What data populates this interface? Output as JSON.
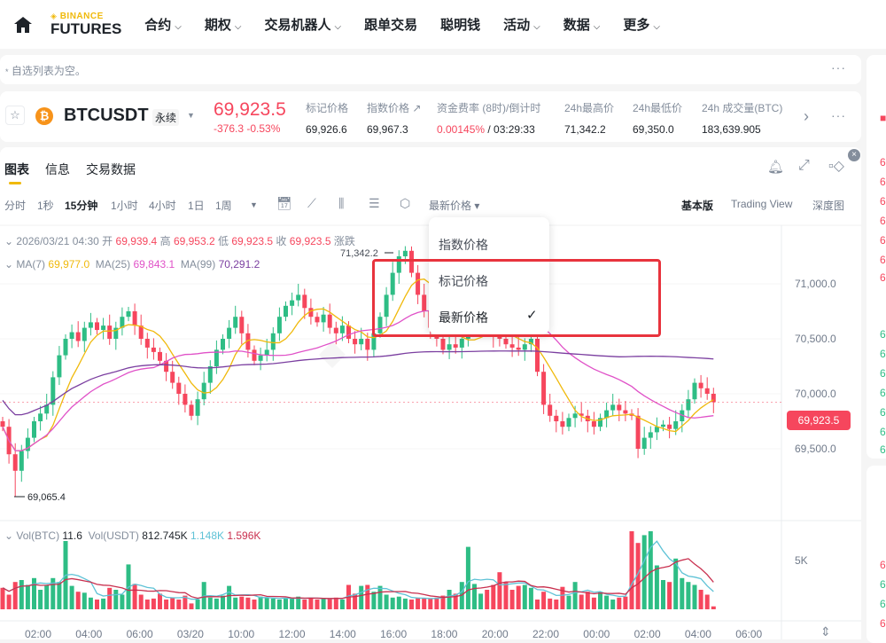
{
  "nav": {
    "brand_top": "BINANCE",
    "brand_bottom": "FUTURES",
    "items": [
      {
        "label": "合约",
        "dropdown": true
      },
      {
        "label": "期权",
        "dropdown": true
      },
      {
        "label": "交易机器人",
        "dropdown": true
      },
      {
        "label": "跟单交易",
        "dropdown": false
      },
      {
        "label": "聪明钱",
        "dropdown": false
      },
      {
        "label": "活动",
        "dropdown": true
      },
      {
        "label": "数据",
        "dropdown": true
      },
      {
        "label": "更多",
        "dropdown": true
      }
    ]
  },
  "watchlist": {
    "empty_text": "自选列表为空。"
  },
  "ticker": {
    "symbol": "BTCUSDT",
    "type": "永续",
    "last_price": "69,923.5",
    "change": "-376.3",
    "change_pct": "-0.53%",
    "stats": [
      {
        "label": "标记价格",
        "value": "69,926.6"
      },
      {
        "label": "指数价格 ↗",
        "value": "69,967.3"
      },
      {
        "label": "资金费率 (8时)/倒计时",
        "value": "0.00145%",
        "value2": " / 03:29:33"
      },
      {
        "label": "24h最高价",
        "value": "71,342.2"
      },
      {
        "label": "24h最低价",
        "value": "69,350.0"
      },
      {
        "label": "24h 成交量(BTC)",
        "value": "183,639.905"
      }
    ]
  },
  "tabs": [
    "图表",
    "信息",
    "交易数据"
  ],
  "intervals": [
    "分时",
    "1秒",
    "15分钟",
    "1小时",
    "4小时",
    "1日",
    "1周"
  ],
  "selected_interval": "15分钟",
  "price_type": "最新价格",
  "views": [
    "基本版",
    "Trading View",
    "深度图"
  ],
  "selected_view": "基本版",
  "ohlc": {
    "date": "2026/03/21 04:30",
    "open_label": "开",
    "open": "69,939.4",
    "high_label": "高",
    "high": "69,953.2",
    "low_label": "低",
    "low": "69,923.5",
    "close_label": "收",
    "close": "69,923.5",
    "change_label": "涨跌"
  },
  "ma": {
    "ma7_label": "MA(7)",
    "ma7": "69,977.0",
    "ma25_label": "MA(25)",
    "ma25": "69,843.1",
    "ma99_label": "MA(99)",
    "ma99": "70,291.2"
  },
  "vol": {
    "btc_label": "Vol(BTC)",
    "btc": "11.6",
    "usdt_label": "Vol(USDT)",
    "usdt": "812.745K",
    "ma1": "1.148K",
    "ma2": "1.596K",
    "axis_label": "5K"
  },
  "dropdown": {
    "items": [
      "指数价格",
      "标记价格",
      "最新价格"
    ],
    "selected": "最新价格"
  },
  "colors": {
    "up": "#2ebd85",
    "down": "#f6465d",
    "ma7": "#f0b90b",
    "ma25": "#e052c8",
    "ma99": "#7b3fa0",
    "vol_ma1": "#5ec2d6",
    "vol_ma2": "#c9304f",
    "accent": "#f0b90b"
  },
  "chart_data": {
    "type": "candlestick",
    "interval": "15m",
    "y_ticks": [
      "71,000.0",
      "70,500.0",
      "70,000.0",
      "69,500.0"
    ],
    "y_tick_values": [
      71000,
      70500,
      70000,
      69500
    ],
    "x_ticks": [
      "02:00",
      "04:00",
      "06:00",
      "03/20",
      "10:00",
      "12:00",
      "14:00",
      "16:00",
      "18:00",
      "20:00",
      "22:00",
      "00:00",
      "02:00",
      "04:00",
      "06:00"
    ],
    "high_marker": "71,342.2",
    "low_marker": "69,065.4",
    "last_price": 69923.5,
    "last_label": "69,923.5",
    "closes": [
      69700,
      69450,
      69300,
      69480,
      69600,
      69750,
      69820,
      69900,
      70150,
      70350,
      70500,
      70560,
      70480,
      70600,
      70650,
      70580,
      70620,
      70500,
      70600,
      70700,
      70750,
      70620,
      70500,
      70420,
      70380,
      70300,
      70200,
      70100,
      70000,
      69900,
      69800,
      69950,
      70100,
      70250,
      70400,
      70500,
      70600,
      70700,
      70550,
      70400,
      70300,
      70350,
      70400,
      70550,
      70700,
      70800,
      70850,
      70900,
      70780,
      70700,
      70650,
      70720,
      70600,
      70550,
      70620,
      70500,
      70450,
      70500,
      70400,
      70550,
      70700,
      70900,
      71100,
      71250,
      71300,
      71100,
      70900,
      70750,
      70600,
      70500,
      70400,
      70450,
      70420,
      70500,
      70560,
      70600,
      70650,
      70580,
      70520,
      70500,
      70450,
      70420,
      70400,
      70450,
      70500,
      70200,
      69900,
      69800,
      69750,
      69700,
      69780,
      69820,
      69800,
      69750,
      69700,
      69780,
      69850,
      69900,
      69850,
      69820,
      69800,
      69500,
      69600,
      69650,
      69700,
      69720,
      69680,
      69750,
      69850,
      69950,
      70100,
      70050,
      70000,
      69923.5
    ],
    "volumes_k": [
      2.2,
      1.5,
      2.8,
      3.0,
      2.5,
      3.2,
      2.0,
      2.5,
      3.2,
      2.8,
      7.0,
      2.4,
      1.8,
      1.7,
      1.2,
      1.0,
      1.1,
      2.2,
      2.0,
      1.5,
      4.6,
      2.6,
      1.5,
      1.0,
      1.1,
      1.6,
      1.0,
      1.2,
      1.0,
      1.4,
      0.6,
      1.0,
      2.8,
      1.2,
      1.1,
      1.4,
      2.4,
      1.2,
      1.3,
      1.2,
      1.0,
      1.3,
      1.2,
      1.1,
      1.0,
      1.1,
      1.2,
      1.3,
      1.0,
      1.2,
      1.0,
      1.1,
      1.1,
      1.2,
      1.0,
      2.5,
      1.6,
      2.4,
      2.5,
      1.8,
      2.4,
      1.5,
      1.2,
      1.3,
      1.1,
      1.0,
      1.2,
      1.1,
      1.1,
      1.2,
      1.4,
      2.0,
      1.6,
      2.8,
      6.4,
      2.6,
      1.6,
      2.0,
      2.5,
      3.8,
      2.8,
      2.0,
      2.4,
      2.5,
      2.2,
      1.0,
      1.8,
      1.1,
      1.0,
      2.3,
      1.4,
      2.8,
      1.5,
      1.8,
      1.2,
      1.8,
      1.4,
      1.0,
      1.2,
      1.3,
      8.0,
      6.8,
      7.6,
      8.0,
      4.5,
      3.0,
      2.8,
      5.2,
      3.2,
      2.8,
      2.5,
      2.0,
      1.5,
      0.3
    ]
  }
}
